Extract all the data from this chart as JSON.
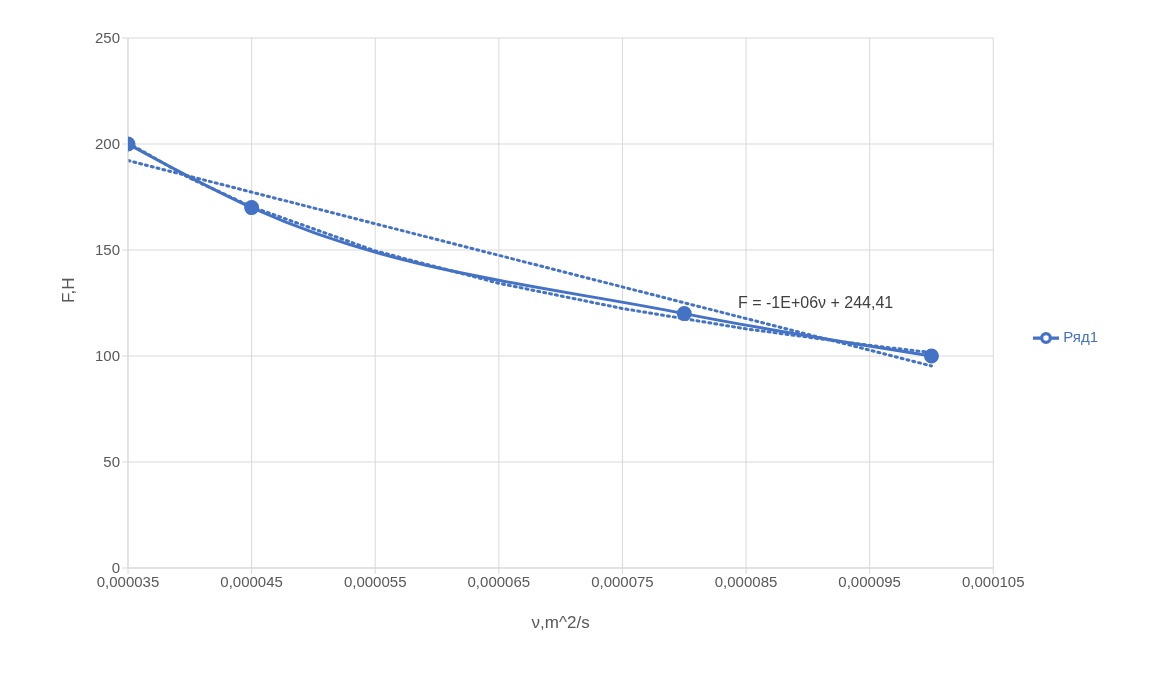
{
  "chart_data": {
    "type": "line",
    "xlabel": "ν,m^2/s",
    "ylabel": "F,H",
    "xlim": [
      3.5e-05,
      0.000105
    ],
    "xticks": [
      {
        "value": 3.5e-05,
        "label": "0,000035"
      },
      {
        "value": 4.5e-05,
        "label": "0,000045"
      },
      {
        "value": 5.5e-05,
        "label": "0,000055"
      },
      {
        "value": 6.5e-05,
        "label": "0,000065"
      },
      {
        "value": 7.5e-05,
        "label": "0,000075"
      },
      {
        "value": 8.5e-05,
        "label": "0,000085"
      },
      {
        "value": 9.5e-05,
        "label": "0,000095"
      },
      {
        "value": 0.000105,
        "label": "0,000105"
      }
    ],
    "ylim": [
      0,
      250
    ],
    "yticks": [
      0,
      50,
      100,
      150,
      200,
      250
    ],
    "grid": true,
    "legend": "right",
    "marker": "circle",
    "line_style": "solid",
    "annotations": [
      "F = -1E+06ν + 244,41"
    ],
    "series": [
      {
        "name": "Ряд1",
        "color": "#4472c4",
        "x": [
          3.5e-05,
          4.5e-05,
          8e-05,
          0.0001
        ],
        "values": [
          200,
          170,
          120,
          100
        ]
      },
      {
        "type": "line",
        "color": "#4472c4",
        "marker": "none",
        "line_style": "dotted",
        "x": [
          3.5e-05,
          0.0001
        ],
        "values": [
          192.2,
          95.3
        ]
      },
      {
        "type": "line",
        "color": "#4472c4",
        "marker": "none",
        "line_style": "dotted",
        "x": [
          3.5e-05,
          4e-05,
          4.5e-05,
          5.5e-05,
          6.5e-05,
          7.5e-05,
          8.5e-05,
          9.5e-05,
          0.0001
        ],
        "values": [
          200.5,
          183.9,
          170.4,
          149.6,
          134.3,
          122.4,
          112.8,
          105,
          101.6
        ]
      }
    ]
  }
}
